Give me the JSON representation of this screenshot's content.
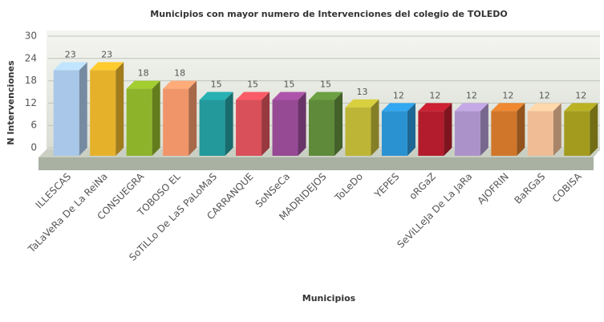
{
  "chart_data": {
    "type": "bar3d",
    "title": "Municipios con mayor numero de Intervenciones del colegio de TOLEDO",
    "x_label": "Municipios",
    "y_label": "N Intervenciones",
    "categories": [
      "ILLESCAS",
      "TaLaVeRa De La ReiNa",
      "CONSUEGRA",
      "TOBOSO EL",
      "SoTiLLo De LaS PaLoMaS",
      "CARRANQUE",
      "SoNSeCa",
      "MADRIDEJOS",
      "ToLeDo",
      "YEPES",
      "oRGaZ",
      "SeViLLeJa De La JaRa",
      "AJOFRIN",
      "BaRGaS",
      "COBISA"
    ],
    "values": [
      23,
      23,
      18,
      18,
      15,
      15,
      15,
      15,
      13,
      12,
      12,
      12,
      12,
      12,
      12
    ],
    "colors": [
      "#a9c7e8",
      "#e6b12a",
      "#8db32a",
      "#f0956a",
      "#23999c",
      "#d9505a",
      "#964a94",
      "#5f8a3a",
      "#bcb536",
      "#2b92d2",
      "#b21c2c",
      "#ab93c9",
      "#d0762a",
      "#f0bc95",
      "#a39b1e"
    ],
    "ylim": [
      0,
      30
    ],
    "yticks": [
      0,
      6,
      12,
      18,
      24,
      30
    ],
    "grid": true
  }
}
